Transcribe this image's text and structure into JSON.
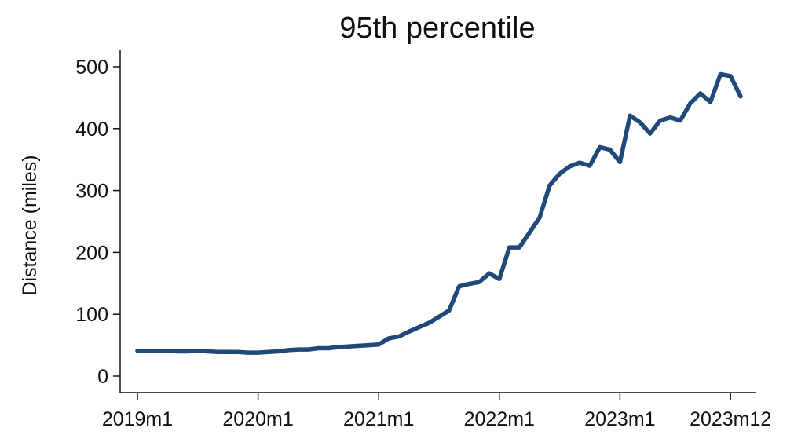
{
  "chart_data": {
    "type": "line",
    "title": "95th percentile",
    "xlabel": "",
    "ylabel": "Distance (miles)",
    "ylim": [
      0,
      500
    ],
    "yticks": [
      0,
      100,
      200,
      300,
      400,
      500
    ],
    "xticks": [
      {
        "index": 0,
        "label": "2019m1"
      },
      {
        "index": 12,
        "label": "2020m1"
      },
      {
        "index": 24,
        "label": "2021m1"
      },
      {
        "index": 36,
        "label": "2022m1"
      },
      {
        "index": 48,
        "label": "2023m1"
      },
      {
        "index": 59,
        "label": "2023m12"
      }
    ],
    "grid": false,
    "legend": "none",
    "color": "#1f4a78",
    "series": [
      {
        "values": [
          41,
          41,
          41,
          41,
          40,
          40,
          41,
          40,
          39,
          39,
          39,
          38,
          38,
          39,
          40,
          42,
          43,
          43,
          45,
          45,
          47,
          48,
          49,
          50,
          51,
          61,
          64,
          72,
          79,
          86,
          96,
          106,
          145,
          149,
          152,
          166,
          157,
          208,
          208,
          232,
          256,
          308,
          327,
          339,
          345,
          340,
          370,
          366,
          346,
          421,
          410,
          392,
          413,
          418,
          413,
          441,
          457,
          443,
          488,
          485,
          452
        ]
      }
    ]
  }
}
